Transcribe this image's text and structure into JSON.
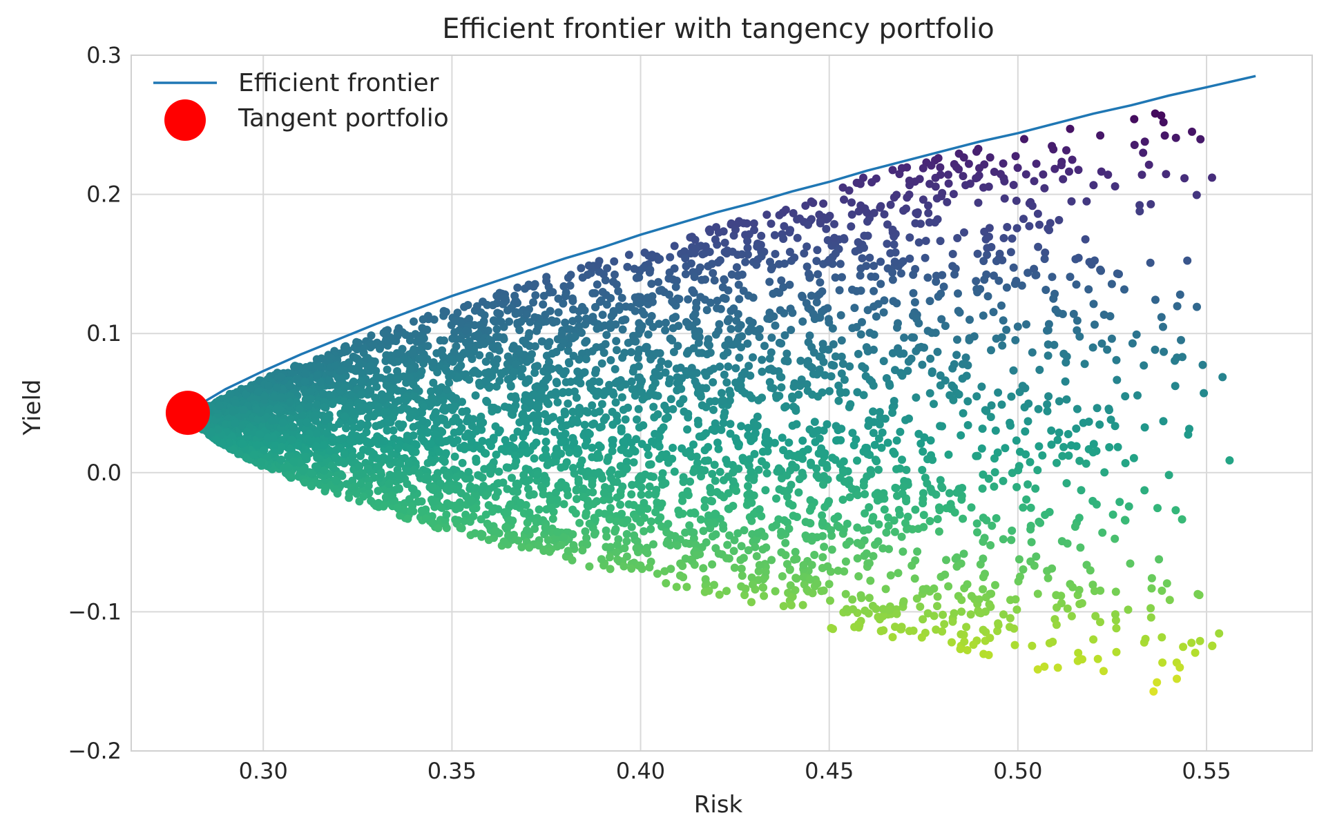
{
  "chart_data": {
    "type": "scatter",
    "title": "Efficient frontier with tangency portfolio",
    "xlabel": "Risk",
    "ylabel": "Yield",
    "xlim": [
      0.265,
      0.578
    ],
    "ylim": [
      -0.2,
      0.3
    ],
    "xticks": [
      0.3,
      0.35,
      0.4,
      0.45,
      0.5,
      0.55
    ],
    "xtick_labels": [
      "0.30",
      "0.35",
      "0.40",
      "0.45",
      "0.50",
      "0.55"
    ],
    "yticks": [
      0.3,
      0.2,
      0.1,
      0.0,
      -0.1,
      -0.2
    ],
    "ytick_labels": [
      "0.3",
      "0.2",
      "0.1",
      "0.0",
      "−0.1",
      "−0.2"
    ],
    "grid": true,
    "legend_position": "upper-left",
    "colormap": "viridis",
    "colors": {
      "frontier": "#1f77b4",
      "tangent": "#ff0000",
      "grid": "#d9d9d9",
      "spine": "#d0d0d0"
    },
    "series": [
      {
        "name": "Efficient frontier",
        "kind": "line",
        "x": [
          0.28,
          0.285,
          0.29,
          0.3,
          0.31,
          0.32,
          0.33,
          0.34,
          0.35,
          0.36,
          0.37,
          0.38,
          0.39,
          0.4,
          0.41,
          0.42,
          0.43,
          0.44,
          0.45,
          0.46,
          0.47,
          0.48,
          0.49,
          0.5,
          0.51,
          0.52,
          0.53,
          0.54,
          0.55,
          0.563
        ],
        "y": [
          0.043,
          0.052,
          0.06,
          0.073,
          0.085,
          0.096,
          0.107,
          0.117,
          0.127,
          0.136,
          0.145,
          0.154,
          0.162,
          0.171,
          0.179,
          0.187,
          0.194,
          0.202,
          0.209,
          0.217,
          0.224,
          0.231,
          0.238,
          0.244,
          0.251,
          0.258,
          0.264,
          0.271,
          0.277,
          0.285
        ]
      },
      {
        "name": "Tangent portfolio",
        "kind": "marker",
        "x": [
          0.28
        ],
        "y": [
          0.043
        ]
      }
    ],
    "scatter_cloud": {
      "description_of_envelope": "random portfolios colored by yield (viridis, high yield dark purple, low yield yellow)",
      "approx_count": 5000,
      "x_range": [
        0.28,
        0.558
      ],
      "y_range": [
        -0.18,
        0.27
      ]
    }
  }
}
